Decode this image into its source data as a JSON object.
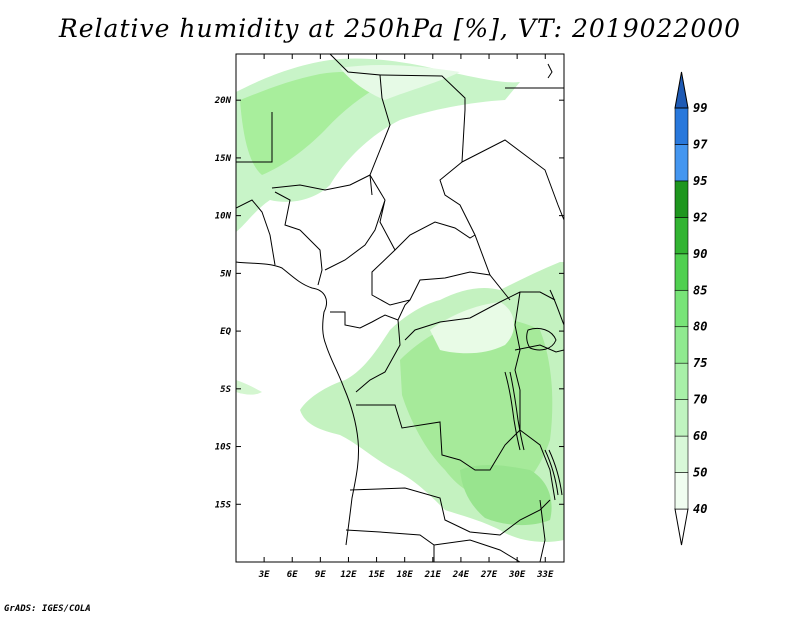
{
  "title": "Relative humidity at 250hPa [%], VT: 2019022000",
  "credit": "GrADS: IGES/COLA",
  "map": {
    "lon_range": [
      0,
      35
    ],
    "lat_range": [
      -20,
      24
    ],
    "lon_ticks": [
      "3E",
      "6E",
      "9E",
      "12E",
      "15E",
      "18E",
      "21E",
      "24E",
      "27E",
      "30E",
      "33E"
    ],
    "lat_ticks": [
      "20N",
      "15N",
      "10N",
      "5N",
      "EQ",
      "5S",
      "10S",
      "15S"
    ]
  },
  "colorbar": {
    "levels": [
      "40",
      "50",
      "60",
      "70",
      "75",
      "80",
      "85",
      "90",
      "92",
      "95",
      "97",
      "99"
    ],
    "colors": [
      "#f0fdf0",
      "#d8f8d8",
      "#c0f4c0",
      "#a8f0a8",
      "#90ea90",
      "#78e478",
      "#50d050",
      "#32b432",
      "#1e961e",
      "#4496f0",
      "#2878dc",
      "#1e5ab4"
    ]
  }
}
